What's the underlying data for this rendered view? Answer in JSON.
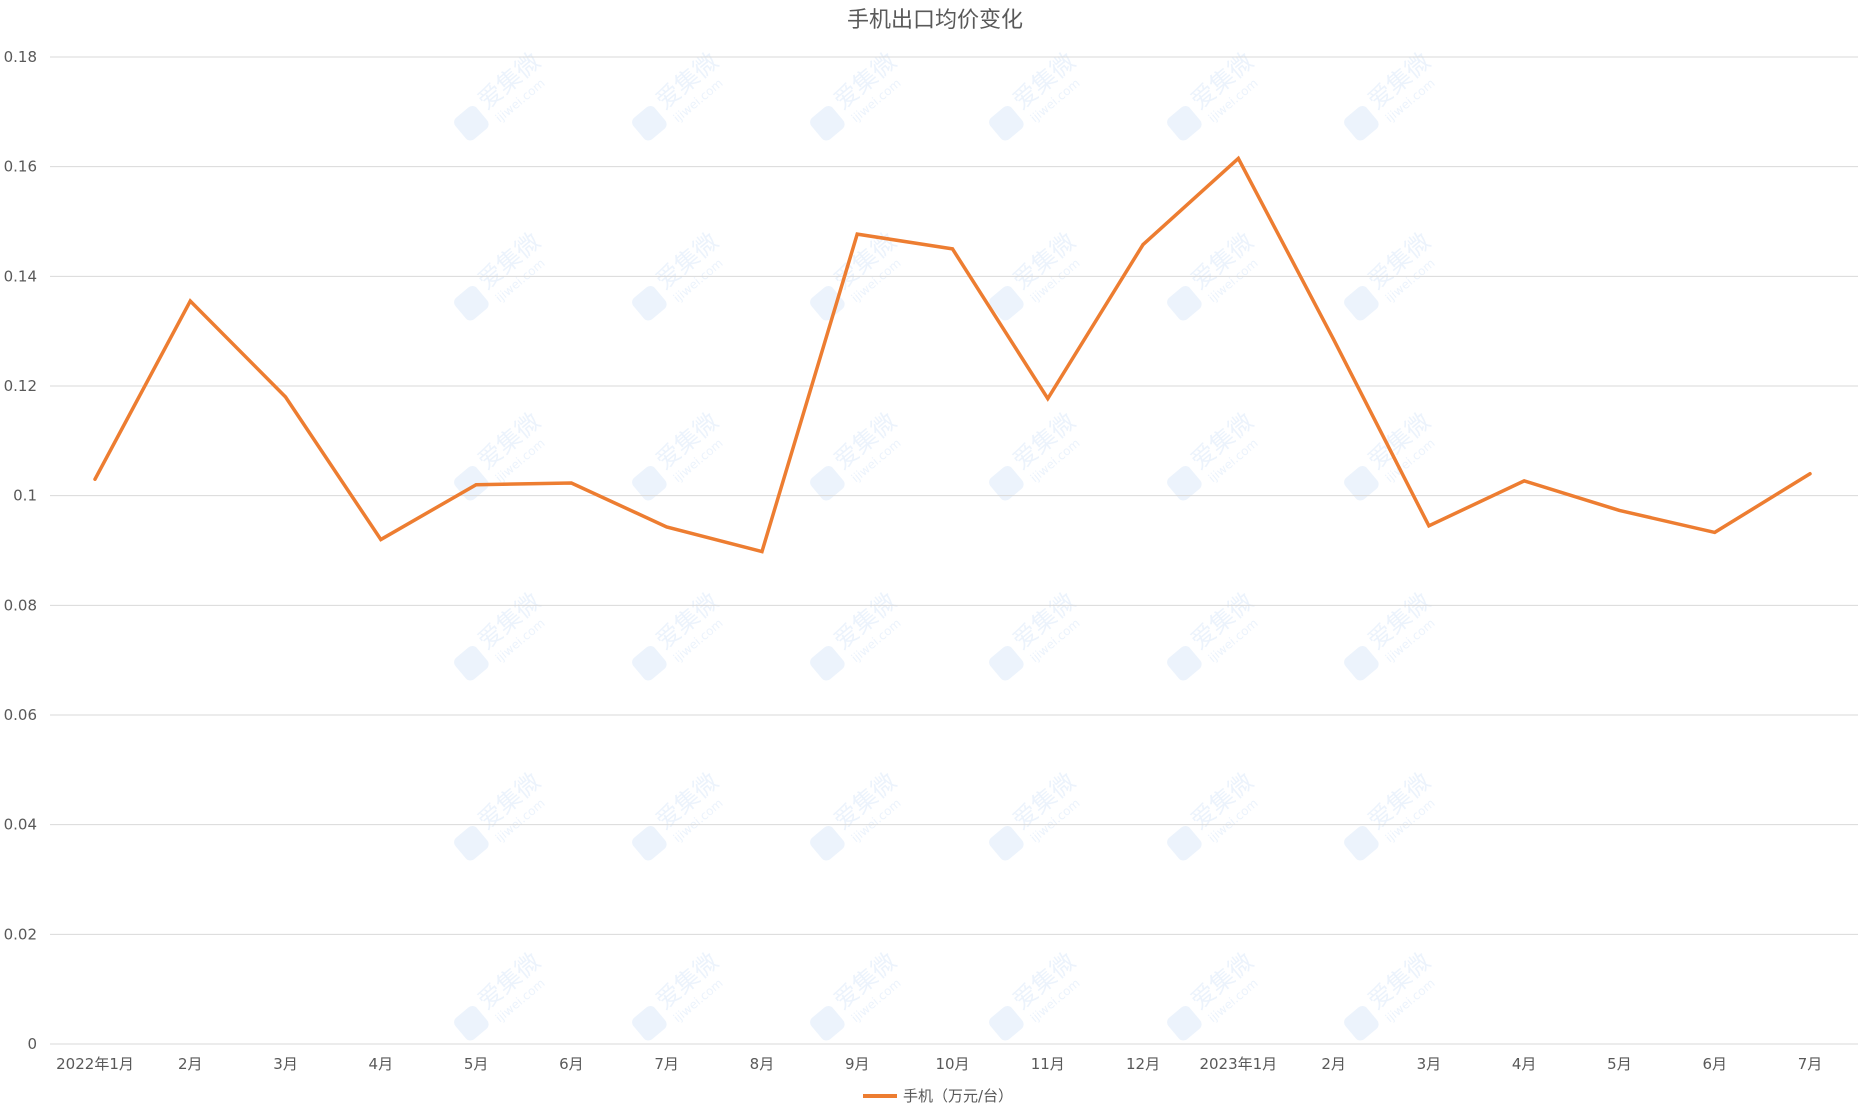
{
  "chart_data": {
    "type": "line",
    "title": "手机出口均价变化",
    "xlabel": "",
    "ylabel": "",
    "categories": [
      "2022年1月",
      "2月",
      "3月",
      "4月",
      "5月",
      "6月",
      "7月",
      "8月",
      "9月",
      "10月",
      "11月",
      "12月",
      "2023年1月",
      "2月",
      "3月",
      "4月",
      "5月",
      "6月",
      "7月"
    ],
    "series": [
      {
        "name": "手机（万元/台）",
        "color": "#ed7d31",
        "values": [
          0.103,
          0.1355,
          0.118,
          0.092,
          0.102,
          0.1023,
          0.0943,
          0.0898,
          0.1477,
          0.145,
          0.1177,
          0.1458,
          0.1615,
          0.1285,
          0.0945,
          0.1027,
          0.0973,
          0.0933,
          0.104
        ]
      }
    ],
    "ylim": [
      0,
      0.18
    ],
    "yticks": [
      "0",
      "0.02",
      "0.04",
      "0.06",
      "0.08",
      "0.1",
      "0.12",
      "0.14",
      "0.16",
      "0.18"
    ],
    "grid": true,
    "legend": "bottom"
  },
  "watermark": {
    "text": "爱集微",
    "subtext": "ijiwei.com",
    "icon": "jiwei-logo-icon"
  }
}
